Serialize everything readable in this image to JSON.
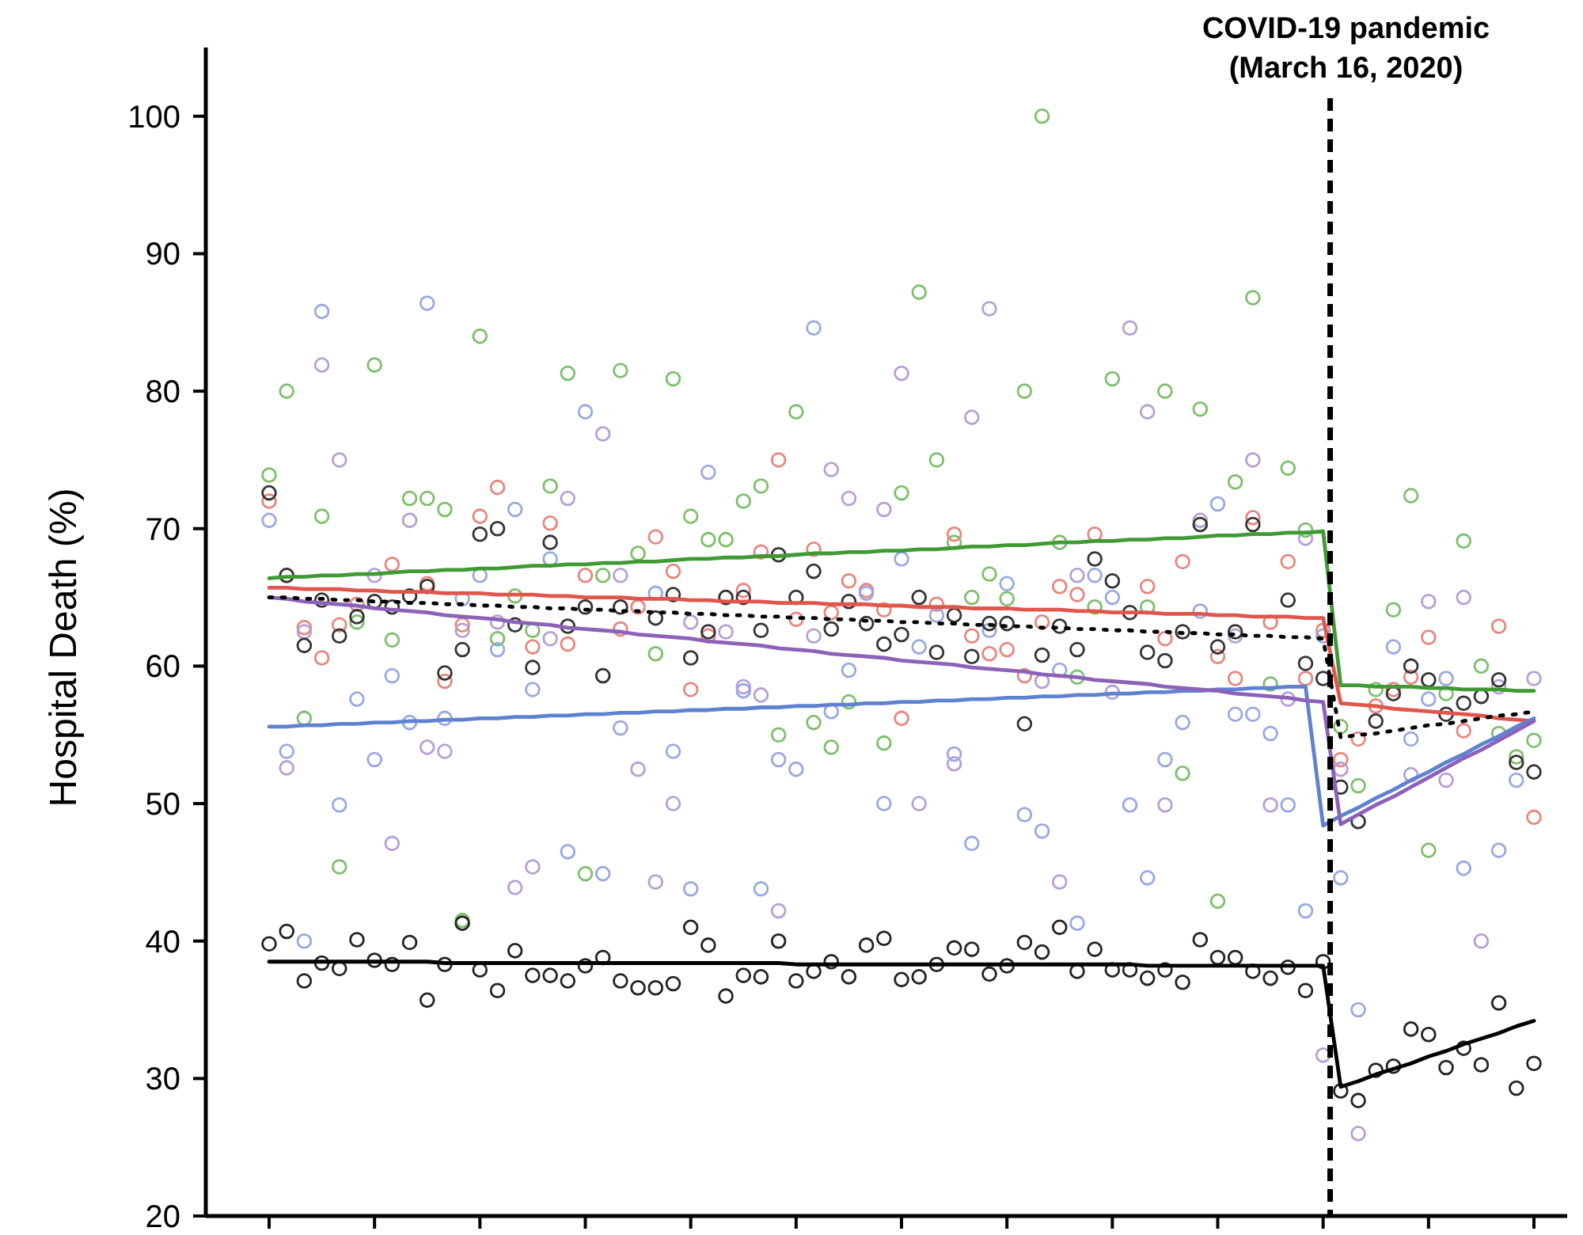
{
  "chart_data": {
    "type": "scatter",
    "ylabel": "Hospital Death (%)",
    "ylim": [
      20,
      105
    ],
    "yticks": [
      20,
      30,
      40,
      50,
      60,
      70,
      80,
      90,
      100
    ],
    "grid": false,
    "marker": "circle",
    "categories": [
      null,
      null,
      null,
      null,
      null,
      null,
      null,
      null,
      null,
      null,
      null,
      null,
      null,
      null,
      null,
      null,
      null,
      null,
      null,
      null,
      null,
      null,
      null,
      null,
      null,
      null,
      null,
      null,
      null,
      null,
      null,
      null,
      null,
      null,
      null,
      null,
      null,
      null,
      null,
      null,
      null,
      null,
      null,
      null,
      null,
      null,
      null,
      null,
      null,
      null,
      null,
      null,
      null,
      null,
      null,
      null,
      null,
      null,
      null,
      null,
      null,
      null,
      null,
      null,
      null,
      null,
      null,
      null,
      null,
      null,
      null,
      null,
      null
    ],
    "annotations": [
      "COVID-19 pandemic (March 16, 2020)"
    ],
    "series": [
      {
        "color": "#7cc06a",
        "values": [
          73.9,
          80.0,
          56.2,
          70.9,
          45.4,
          63.2,
          81.9,
          61.9,
          72.2,
          72.2,
          71.4,
          41.5,
          84.0,
          62.0,
          65.1,
          62.6,
          73.1,
          81.3,
          44.9,
          66.6,
          81.5,
          68.2,
          60.9,
          80.9,
          70.9,
          69.2,
          69.2,
          72.0,
          73.1,
          55.0,
          78.5,
          55.9,
          54.1,
          57.4,
          null,
          54.4,
          72.6,
          87.2,
          75.0,
          69.0,
          65.0,
          66.7,
          64.9,
          80.0,
          100.0,
          69.0,
          59.2,
          64.3,
          80.9,
          null,
          64.3,
          80.0,
          52.2,
          78.7,
          42.9,
          73.4,
          86.8,
          58.7,
          74.4,
          69.9,
          null,
          55.6,
          51.3,
          58.3,
          64.1,
          72.4,
          46.6,
          58.0,
          69.1,
          60.0,
          55.1,
          53.4,
          54.6
        ]
      },
      {
        "color": "#e8867c",
        "values": [
          72.0,
          66.6,
          62.8,
          60.6,
          63.0,
          64.5,
          null,
          67.4,
          null,
          66.0,
          58.9,
          63.0,
          70.9,
          73.0,
          null,
          61.4,
          70.4,
          61.6,
          66.6,
          59.3,
          62.7,
          64.3,
          69.4,
          66.9,
          58.3,
          62.2,
          65.0,
          65.5,
          68.3,
          75.0,
          63.4,
          68.5,
          63.9,
          66.2,
          65.5,
          64.1,
          56.2,
          null,
          64.5,
          69.6,
          62.2,
          60.9,
          61.2,
          59.3,
          63.2,
          65.8,
          65.2,
          69.6,
          null,
          null,
          65.8,
          62.0,
          67.6,
          null,
          60.7,
          59.1,
          70.8,
          63.2,
          67.6,
          59.1,
          62.6,
          53.2,
          54.7,
          57.1,
          58.3,
          59.2,
          62.1,
          null,
          55.3,
          null,
          62.9,
          null,
          49.0
        ]
      },
      {
        "color": "#97a9e3",
        "values": [
          70.6,
          53.8,
          40.0,
          85.8,
          49.9,
          57.6,
          53.2,
          59.3,
          55.9,
          86.4,
          56.2,
          64.9,
          66.6,
          61.2,
          71.4,
          58.3,
          67.8,
          46.5,
          78.5,
          44.9,
          55.5,
          null,
          65.3,
          53.8,
          43.8,
          74.1,
          null,
          58.2,
          43.8,
          53.2,
          52.5,
          84.6,
          56.7,
          59.7,
          65.3,
          50.0,
          67.8,
          61.4,
          63.7,
          53.6,
          47.1,
          62.6,
          66.0,
          49.2,
          48.0,
          59.7,
          41.3,
          66.6,
          65.0,
          49.9,
          44.6,
          53.2,
          55.9,
          64.0,
          71.8,
          56.5,
          56.5,
          55.1,
          49.9,
          42.2,
          62.2,
          44.6,
          35.0,
          null,
          61.4,
          54.7,
          57.6,
          59.1,
          45.3,
          null,
          46.6,
          51.7,
          null
        ]
      },
      {
        "color": "#b79fd6",
        "values": [
          null,
          52.6,
          62.5,
          81.9,
          75.0,
          null,
          66.6,
          47.1,
          70.6,
          54.1,
          53.8,
          62.6,
          null,
          63.2,
          43.9,
          45.4,
          62.0,
          72.2,
          null,
          76.9,
          66.6,
          52.5,
          44.3,
          50.0,
          63.2,
          null,
          62.5,
          58.5,
          57.9,
          42.2,
          null,
          62.2,
          74.3,
          72.2,
          null,
          71.4,
          81.3,
          50.0,
          null,
          52.9,
          78.1,
          86.0,
          null,
          null,
          58.9,
          44.3,
          66.6,
          null,
          58.1,
          84.6,
          78.5,
          49.9,
          null,
          70.6,
          null,
          62.2,
          75.0,
          49.9,
          57.6,
          69.3,
          31.7,
          52.5,
          26.0,
          null,
          null,
          52.1,
          64.7,
          51.7,
          65.0,
          40.0,
          58.5,
          null,
          59.1
        ]
      },
      {
        "color": "#333333",
        "values": [
          72.6,
          66.6,
          61.5,
          64.8,
          62.2,
          63.6,
          64.7,
          64.3,
          65.1,
          65.8,
          59.5,
          61.2,
          69.6,
          70.0,
          63.0,
          59.9,
          69.0,
          62.9,
          64.3,
          59.3,
          64.3,
          null,
          63.5,
          65.2,
          60.6,
          62.5,
          65.0,
          65.0,
          62.6,
          68.1,
          65.0,
          66.9,
          62.7,
          64.7,
          63.1,
          61.6,
          62.3,
          65.0,
          61.0,
          63.7,
          60.7,
          63.1,
          63.1,
          55.8,
          60.8,
          62.9,
          61.2,
          67.8,
          66.2,
          63.9,
          61.0,
          60.4,
          62.5,
          70.3,
          61.4,
          62.5,
          70.3,
          null,
          64.8,
          60.2,
          59.1,
          51.2,
          48.7,
          56.0,
          58.0,
          60.0,
          59.0,
          56.5,
          57.3,
          57.8,
          59.0,
          53.0,
          52.3
        ]
      },
      {
        "color": "#222222",
        "values": [
          39.8,
          40.7,
          37.1,
          38.4,
          38.0,
          40.1,
          38.6,
          38.3,
          39.9,
          35.7,
          38.3,
          41.3,
          37.9,
          36.4,
          39.3,
          37.5,
          37.5,
          37.1,
          38.2,
          38.8,
          37.1,
          36.6,
          36.6,
          36.9,
          41.0,
          39.7,
          36.0,
          37.5,
          37.4,
          40.0,
          37.1,
          37.8,
          38.5,
          37.4,
          39.7,
          40.2,
          37.2,
          37.4,
          38.3,
          39.5,
          39.4,
          37.6,
          38.2,
          39.9,
          39.2,
          41.0,
          37.8,
          39.4,
          37.9,
          37.9,
          37.3,
          37.9,
          37.0,
          40.1,
          38.8,
          38.8,
          37.8,
          37.3,
          38.1,
          36.4,
          38.5,
          29.1,
          28.4,
          30.6,
          30.9,
          33.6,
          33.2,
          30.8,
          32.2,
          31.0,
          35.5,
          29.3,
          31.1
        ]
      },
      {
        "type": "line",
        "marker": "none",
        "line_style": "solid",
        "color": "#3f9a34",
        "values": [
          66.4,
          66.5,
          66.5,
          66.6,
          66.6,
          66.7,
          66.7,
          66.8,
          66.9,
          66.9,
          67.0,
          67.0,
          67.1,
          67.1,
          67.2,
          67.3,
          67.3,
          67.4,
          67.4,
          67.5,
          67.5,
          67.6,
          67.6,
          67.7,
          67.8,
          67.8,
          67.9,
          67.9,
          68.0,
          68.0,
          68.1,
          68.2,
          68.2,
          68.3,
          68.3,
          68.4,
          68.4,
          68.5,
          68.5,
          68.6,
          68.7,
          68.7,
          68.8,
          68.8,
          68.9,
          69.0,
          69.0,
          69.1,
          69.1,
          69.2,
          69.2,
          69.3,
          69.3,
          69.4,
          69.5,
          69.5,
          69.6,
          69.6,
          69.7,
          69.7,
          69.8,
          58.6,
          58.6,
          58.5,
          58.5,
          58.5,
          58.4,
          58.4,
          58.3,
          58.3,
          58.3,
          58.2,
          58.2
        ]
      },
      {
        "type": "line",
        "marker": "none",
        "line_style": "solid",
        "color": "#e0564c",
        "values": [
          65.7,
          65.7,
          65.6,
          65.6,
          65.6,
          65.5,
          65.5,
          65.4,
          65.4,
          65.4,
          65.3,
          65.3,
          65.3,
          65.2,
          65.2,
          65.2,
          65.1,
          65.1,
          65.0,
          65.0,
          65.0,
          64.9,
          64.9,
          64.9,
          64.8,
          64.8,
          64.7,
          64.7,
          64.7,
          64.6,
          64.6,
          64.6,
          64.5,
          64.5,
          64.5,
          64.4,
          64.4,
          64.3,
          64.3,
          64.3,
          64.2,
          64.2,
          64.2,
          64.1,
          64.1,
          64.1,
          64.0,
          64.0,
          63.9,
          63.9,
          63.9,
          63.8,
          63.8,
          63.8,
          63.7,
          63.7,
          63.6,
          63.6,
          63.6,
          63.5,
          63.5,
          57.3,
          57.2,
          57.1,
          56.9,
          56.8,
          56.7,
          56.6,
          56.5,
          56.4,
          56.2,
          56.1,
          56.0
        ]
      },
      {
        "type": "line",
        "marker": "none",
        "line_style": "solid",
        "color": "#5f82d0",
        "values": [
          55.6,
          55.6,
          55.7,
          55.7,
          55.8,
          55.8,
          55.9,
          55.9,
          56.0,
          56.0,
          56.1,
          56.1,
          56.2,
          56.2,
          56.3,
          56.3,
          56.4,
          56.4,
          56.5,
          56.5,
          56.6,
          56.6,
          56.7,
          56.7,
          56.8,
          56.8,
          56.9,
          56.9,
          57.0,
          57.0,
          57.1,
          57.1,
          57.2,
          57.2,
          57.3,
          57.3,
          57.4,
          57.4,
          57.5,
          57.5,
          57.6,
          57.6,
          57.7,
          57.7,
          57.8,
          57.8,
          57.9,
          57.9,
          58.0,
          58.0,
          58.1,
          58.1,
          58.2,
          58.2,
          58.3,
          58.3,
          58.4,
          58.4,
          58.5,
          58.5,
          48.4,
          49.1,
          49.7,
          50.4,
          51.0,
          51.7,
          52.3,
          53.0,
          53.6,
          54.3,
          54.9,
          55.6,
          56.2
        ]
      },
      {
        "type": "line",
        "marker": "none",
        "line_style": "solid",
        "color": "#8c62b8",
        "values": [
          65.0,
          64.9,
          64.7,
          64.6,
          64.5,
          64.4,
          64.2,
          64.1,
          64.0,
          63.9,
          63.7,
          63.6,
          63.5,
          63.4,
          63.2,
          63.1,
          63.0,
          62.8,
          62.7,
          62.6,
          62.5,
          62.3,
          62.2,
          62.1,
          62.0,
          61.8,
          61.7,
          61.6,
          61.5,
          61.3,
          61.2,
          61.1,
          60.9,
          60.8,
          60.7,
          60.6,
          60.4,
          60.3,
          60.2,
          60.1,
          59.9,
          59.8,
          59.7,
          59.6,
          59.4,
          59.3,
          59.2,
          59.0,
          58.9,
          58.8,
          58.7,
          58.5,
          58.4,
          58.3,
          58.2,
          58.0,
          57.9,
          57.8,
          57.7,
          57.5,
          57.4,
          48.5,
          49.2,
          49.9,
          50.5,
          51.2,
          51.9,
          52.6,
          53.3,
          53.9,
          54.6,
          55.3,
          56.0
        ]
      },
      {
        "type": "line",
        "marker": "none",
        "line_style": "dotted",
        "color": "#000000",
        "values": [
          65.0,
          65.0,
          64.9,
          64.9,
          64.8,
          64.8,
          64.7,
          64.7,
          64.6,
          64.6,
          64.5,
          64.5,
          64.4,
          64.4,
          64.3,
          64.3,
          64.2,
          64.2,
          64.1,
          64.1,
          64.0,
          64.0,
          63.9,
          63.9,
          63.8,
          63.8,
          63.7,
          63.7,
          63.6,
          63.6,
          63.5,
          63.5,
          63.4,
          63.4,
          63.3,
          63.3,
          63.2,
          63.2,
          63.1,
          63.1,
          63.0,
          63.0,
          62.9,
          62.9,
          62.8,
          62.8,
          62.7,
          62.7,
          62.6,
          62.6,
          62.5,
          62.5,
          62.4,
          62.4,
          62.3,
          62.3,
          62.2,
          62.2,
          62.1,
          62.1,
          62.0,
          54.8,
          55.0,
          55.1,
          55.3,
          55.5,
          55.7,
          55.8,
          56.0,
          56.2,
          56.4,
          56.5,
          56.7
        ]
      },
      {
        "type": "line",
        "marker": "none",
        "line_style": "solid",
        "color": "#000000",
        "values": [
          38.5,
          38.5,
          38.5,
          38.5,
          38.5,
          38.5,
          38.5,
          38.5,
          38.5,
          38.5,
          38.4,
          38.4,
          38.4,
          38.4,
          38.4,
          38.4,
          38.4,
          38.4,
          38.4,
          38.4,
          38.4,
          38.4,
          38.4,
          38.4,
          38.4,
          38.4,
          38.4,
          38.4,
          38.4,
          38.4,
          38.3,
          38.3,
          38.3,
          38.3,
          38.3,
          38.3,
          38.3,
          38.3,
          38.3,
          38.3,
          38.3,
          38.3,
          38.3,
          38.3,
          38.3,
          38.3,
          38.3,
          38.3,
          38.3,
          38.3,
          38.2,
          38.2,
          38.2,
          38.2,
          38.2,
          38.2,
          38.2,
          38.2,
          38.2,
          38.2,
          38.2,
          29.4,
          29.8,
          30.3,
          30.7,
          31.1,
          31.6,
          32.0,
          32.5,
          32.9,
          33.3,
          33.8,
          34.2
        ]
      }
    ]
  }
}
